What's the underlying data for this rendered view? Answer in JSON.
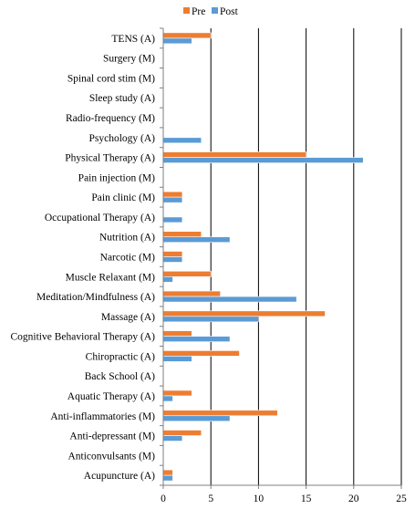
{
  "chart_data": {
    "type": "bar",
    "orientation": "horizontal",
    "title": "",
    "xlabel": "",
    "ylabel": "",
    "xlim": [
      0,
      25
    ],
    "xticks": [
      0,
      5,
      10,
      15,
      20,
      25
    ],
    "grid": "vertical",
    "legend_position": "top-center",
    "categories": [
      "TENS (A)",
      "Surgery (M)",
      "Spinal cord stim (M)",
      "Sleep study (A)",
      "Radio-frequency (M)",
      "Psychology (A)",
      "Physical Therapy (A)",
      "Pain injection (M)",
      "Pain clinic (M)",
      "Occupational Therapy (A)",
      "Nutrition (A)",
      "Narcotic (M)",
      "Muscle Relaxant (M)",
      "Meditation/Mindfulness (A)",
      "Massage (A)",
      "Cognitive Behavioral Therapy (A)",
      "Chiropractic (A)",
      "Back School (A)",
      "Aquatic Therapy (A)",
      "Anti-inflammatories (M)",
      "Anti-depressant (M)",
      "Anticonvulsants (M)",
      "Acupuncture (A)"
    ],
    "series": [
      {
        "name": "Pre",
        "color": "#ED7D31",
        "values": [
          5,
          0,
          0,
          0,
          0,
          0,
          15,
          0,
          2,
          0,
          4,
          2,
          5,
          6,
          17,
          3,
          8,
          0,
          3,
          12,
          4,
          0,
          1
        ]
      },
      {
        "name": "Post",
        "color": "#5B9BD5",
        "values": [
          3,
          0,
          0,
          0,
          0,
          4,
          21,
          0,
          2,
          2,
          7,
          2,
          1,
          14,
          10,
          7,
          3,
          0,
          1,
          7,
          2,
          0,
          1
        ]
      }
    ]
  }
}
